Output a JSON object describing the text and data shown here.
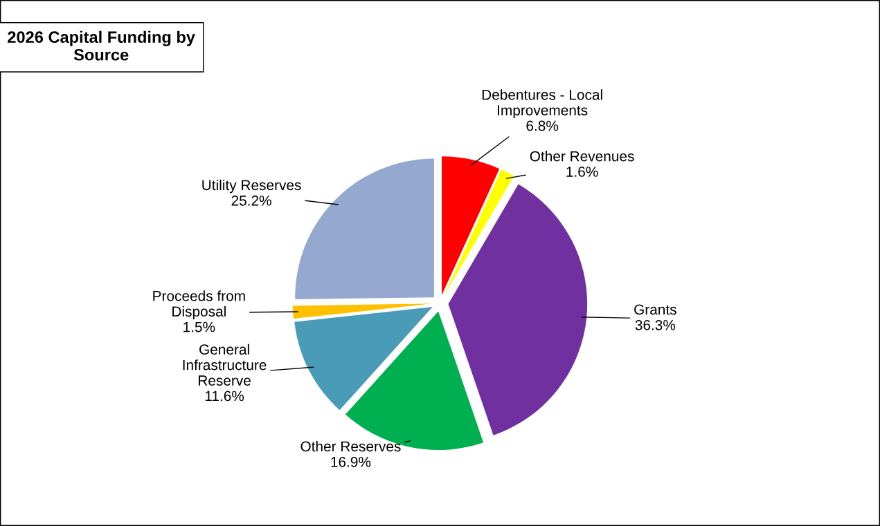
{
  "chart_data": {
    "type": "pie",
    "title": "2026 Capital Funding by\nSource",
    "categories": [
      "Debentures - Local\nImprovements",
      "Other Revenues",
      "Grants",
      "Other Reserves",
      "General\nInfrastructure\nReserve",
      "Proceeds from\nDisposal",
      "Utility Reserves"
    ],
    "values": [
      6.8,
      1.6,
      36.3,
      16.9,
      11.6,
      1.5,
      25.2
    ],
    "value_labels": [
      "6.8%",
      "1.6%",
      "36.3%",
      "16.9%",
      "11.6%",
      "1.5%",
      "25.2%"
    ],
    "colors": [
      "#ff0000",
      "#ffff00",
      "#7030a0",
      "#00b050",
      "#4a9bb7",
      "#ffc000",
      "#95a9d0"
    ],
    "legend": false
  }
}
